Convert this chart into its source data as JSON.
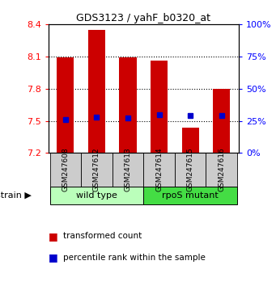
{
  "title": "GDS3123 / yahF_b0320_at",
  "samples": [
    "GSM247608",
    "GSM247612",
    "GSM247613",
    "GSM247614",
    "GSM247615",
    "GSM247616"
  ],
  "bar_tops": [
    8.095,
    8.35,
    8.09,
    8.065,
    7.44,
    7.8
  ],
  "bar_bottom": 7.2,
  "blue_values": [
    7.515,
    7.535,
    7.525,
    7.558,
    7.548,
    7.548
  ],
  "ylim": [
    7.2,
    8.4
  ],
  "yticks_left": [
    7.2,
    7.5,
    7.8,
    8.1,
    8.4
  ],
  "yticks_right": [
    0,
    25,
    50,
    75,
    100
  ],
  "right_ylim": [
    0,
    100
  ],
  "bar_color": "#cc0000",
  "blue_color": "#0000cc",
  "groups": [
    {
      "label": "wild type",
      "indices": [
        0,
        1,
        2
      ],
      "color": "#bbffbb"
    },
    {
      "label": "rpoS mutant",
      "indices": [
        3,
        4,
        5
      ],
      "color": "#44dd44"
    }
  ],
  "grid_lines": [
    7.5,
    7.8,
    8.1
  ],
  "bar_width": 0.55,
  "fig_width": 3.41,
  "fig_height": 3.54,
  "dpi": 100
}
